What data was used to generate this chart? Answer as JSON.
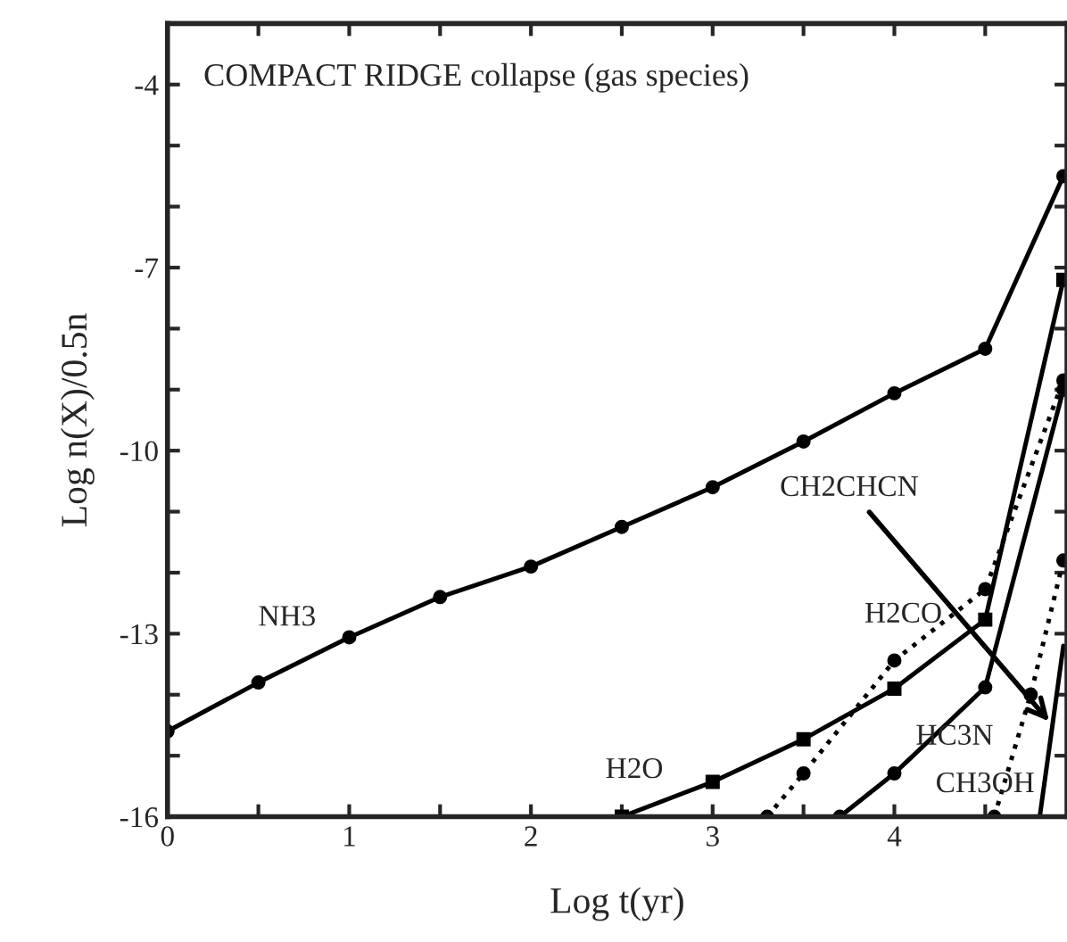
{
  "chart_data": {
    "type": "line",
    "xlabel": "Log t(yr)",
    "ylabel": "Log n(X)/0.5n",
    "xlim": [
      0,
      4.95
    ],
    "ylim": [
      -16,
      -3
    ],
    "xticks": [
      0,
      {
        "value": 0.5,
        "label": null
      },
      1,
      {
        "value": 1.5,
        "label": null
      },
      2,
      {
        "value": 2.5,
        "label": null
      },
      3,
      {
        "value": 3.5,
        "label": null
      },
      4,
      {
        "value": 4.5,
        "label": null
      }
    ],
    "yticks": [
      -16,
      {
        "value": -15,
        "label": null
      },
      {
        "value": -14,
        "label": null
      },
      -13,
      {
        "value": -12,
        "label": null
      },
      {
        "value": -11,
        "label": null
      },
      -10,
      {
        "value": -9,
        "label": null
      },
      {
        "value": -8,
        "label": null
      },
      -7,
      {
        "value": -6,
        "label": null
      },
      {
        "value": -5,
        "label": null
      },
      -4
    ],
    "grid": false,
    "legend": false,
    "series": [
      {
        "color": "#000000",
        "marker": "circle",
        "line_style": "solid",
        "x": [
          0,
          0.5,
          1,
          1.5,
          2,
          2.5,
          3,
          3.5,
          4,
          4.5,
          4.93
        ],
        "values": [
          -14.6,
          -13.8,
          -13.06,
          -12.4,
          -11.9,
          -11.25,
          -10.6,
          -9.85,
          -9.06,
          -8.33,
          -5.5
        ]
      },
      {
        "color": "#000000",
        "marker": "square",
        "line_style": "solid",
        "x": [
          2.5,
          3,
          3.5,
          4,
          4.5,
          4.93
        ],
        "values": [
          -16,
          -15.43,
          -14.73,
          -13.9,
          -12.77,
          -7.2
        ]
      },
      {
        "color": "#000000",
        "marker": "circle",
        "line_style": "dotted",
        "x": [
          3.3,
          3.5,
          4,
          4.5,
          4.93
        ],
        "values": [
          -16,
          -15.29,
          -13.44,
          -12.27,
          -8.85
        ]
      },
      {
        "color": "#000000",
        "marker": "circle",
        "line_style": "solid",
        "x": [
          3.7,
          4,
          4.5,
          4.93
        ],
        "values": [
          -16,
          -15.29,
          -13.88,
          -9.0
        ]
      },
      {
        "color": "#000000",
        "marker": "circle",
        "line_style": "dotted",
        "x": [
          4.55,
          4.75,
          4.93
        ],
        "values": [
          -16,
          -14.0,
          -11.8
        ]
      },
      {
        "color": "#000000",
        "marker": "none",
        "line_style": "solid",
        "x": [
          4.8,
          4.87,
          4.93
        ],
        "values": [
          -16,
          -14.5,
          -13.2
        ]
      }
    ],
    "annotations": [
      "COMPACT RIDGE collapse (gas species)",
      "NH3",
      "H2O",
      "H2CO",
      "HC3N",
      "CH3OH",
      {
        "text": "CH2CHCN",
        "x": 4.87,
        "y": -14.5
      }
    ]
  }
}
